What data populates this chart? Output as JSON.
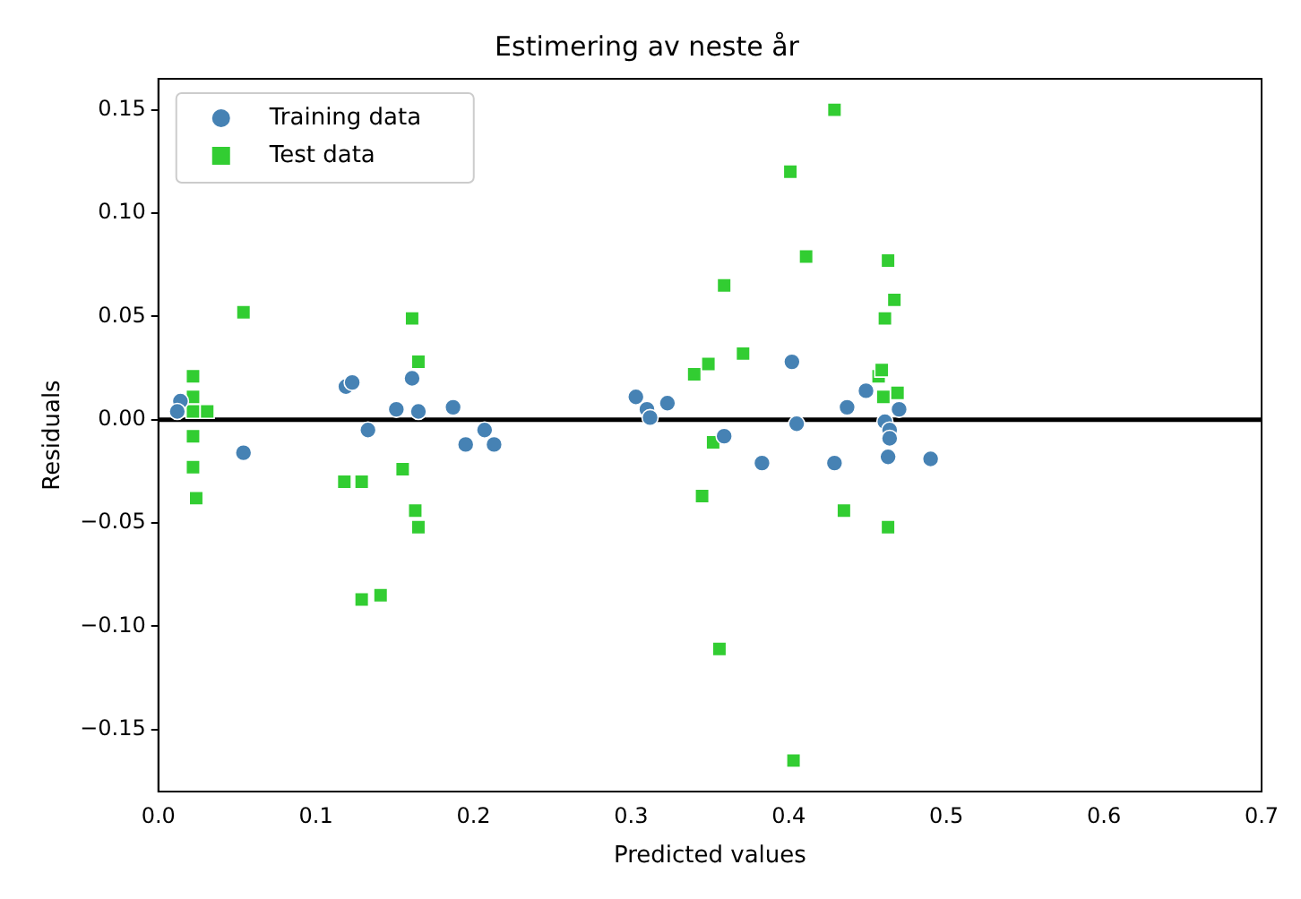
{
  "chart_data": {
    "type": "scatter",
    "title": "Estimering av neste år",
    "xlabel": "Predicted values",
    "ylabel": "Residuals",
    "xlim": [
      0,
      0.7
    ],
    "xticks": [
      {
        "value": 0,
        "label": "0.0"
      },
      0.1,
      0.2,
      0.3,
      0.4,
      0.5,
      0.6,
      0.7
    ],
    "ylim": [
      -0.18,
      0.165
    ],
    "yticks": [
      {
        "value": -0.15,
        "label": "−0.15"
      },
      {
        "value": -0.1,
        "label": "−0.10"
      },
      {
        "value": -0.05,
        "label": "−0.05"
      },
      {
        "value": 0,
        "label": "0.00"
      },
      {
        "value": 0.05,
        "label": "0.05"
      },
      {
        "value": 0.1,
        "label": "0.10"
      },
      {
        "value": 0.15,
        "label": "0.15"
      }
    ],
    "grid": false,
    "legend": "top left",
    "ref_lines": [
      {
        "axis": "y",
        "value": 0,
        "color": "#000000"
      }
    ],
    "series": [
      {
        "name": "Training data",
        "color": "#4682b4",
        "marker": "circle",
        "x": [
          0.014,
          0.012,
          0.054,
          0.119,
          0.123,
          0.133,
          0.151,
          0.161,
          0.165,
          0.187,
          0.195,
          0.207,
          0.213,
          0.303,
          0.31,
          0.312,
          0.323,
          0.359,
          0.383,
          0.402,
          0.405,
          0.429,
          0.437,
          0.449,
          0.461,
          0.463,
          0.464,
          0.464,
          0.47,
          0.49
        ],
        "values": [
          0.009,
          0.004,
          -0.016,
          0.016,
          0.018,
          -0.005,
          0.005,
          0.02,
          0.004,
          0.006,
          -0.012,
          -0.005,
          -0.012,
          0.011,
          0.005,
          0.001,
          0.008,
          -0.008,
          -0.021,
          0.028,
          -0.002,
          -0.021,
          0.006,
          0.014,
          -0.001,
          -0.018,
          -0.005,
          -0.009,
          0.005,
          -0.019
        ]
      },
      {
        "name": "Test data",
        "color": "#32cd32",
        "marker": "square",
        "x": [
          0.054,
          0.022,
          0.022,
          0.022,
          0.031,
          0.022,
          0.022,
          0.024,
          0.118,
          0.129,
          0.161,
          0.165,
          0.155,
          0.163,
          0.165,
          0.129,
          0.141,
          0.34,
          0.349,
          0.352,
          0.345,
          0.356,
          0.429,
          0.401,
          0.411,
          0.359,
          0.463,
          0.467,
          0.461,
          0.371,
          0.457,
          0.459,
          0.46,
          0.469,
          0.435,
          0.463,
          0.403
        ],
        "values": [
          0.052,
          0.021,
          0.011,
          0.004,
          0.004,
          -0.008,
          -0.023,
          -0.038,
          -0.03,
          -0.03,
          0.049,
          0.028,
          -0.024,
          -0.044,
          -0.052,
          -0.087,
          -0.085,
          0.022,
          0.027,
          -0.011,
          -0.037,
          -0.111,
          0.15,
          0.12,
          0.079,
          0.065,
          0.077,
          0.058,
          0.049,
          0.032,
          0.021,
          0.024,
          0.011,
          0.013,
          -0.044,
          -0.052,
          -0.165
        ]
      }
    ]
  }
}
